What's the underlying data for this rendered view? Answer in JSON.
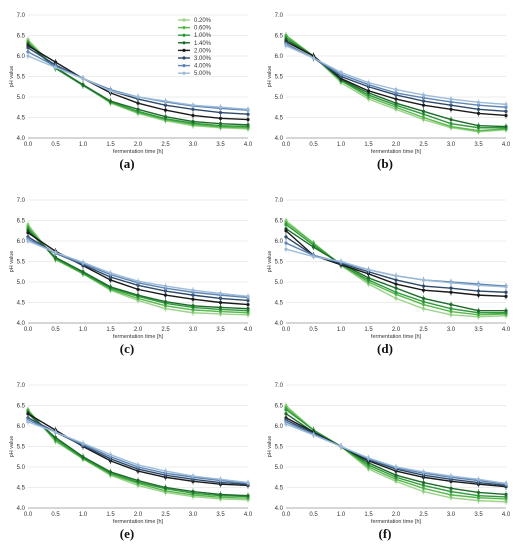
{
  "chart_data": [
    {
      "type": "line",
      "panel_label": "(a)",
      "xlabel": "fermentation time [h]",
      "ylabel": "pH value",
      "ylim": [
        4.0,
        7.0
      ],
      "yticks": [
        "4.0",
        "4.5",
        "5.0",
        "5.5",
        "6.0",
        "6.5",
        "7.0"
      ],
      "xlim": [
        0,
        4
      ],
      "xticks": [
        "0.0",
        "0.5",
        "1.0",
        "1.5",
        "2.0",
        "2.5",
        "3.0",
        "3.5",
        "4.0"
      ],
      "x": [
        0,
        0.5,
        1,
        1.5,
        2,
        2.5,
        3,
        3.5,
        4
      ],
      "legend": {
        "position": "top-right"
      },
      "series": [
        {
          "name": "0.20%",
          "color": "#9bd28c",
          "values": [
            6.4,
            5.7,
            5.3,
            4.85,
            4.6,
            4.42,
            4.3,
            4.25,
            4.22
          ]
        },
        {
          "name": "0.60%",
          "color": "#58b84a",
          "values": [
            6.35,
            5.7,
            5.3,
            4.87,
            4.62,
            4.45,
            4.33,
            4.27,
            4.25
          ]
        },
        {
          "name": "1.00%",
          "color": "#2e9a3c",
          "values": [
            6.3,
            5.7,
            5.28,
            4.88,
            4.65,
            4.47,
            4.36,
            4.3,
            4.28
          ]
        },
        {
          "name": "1.40%",
          "color": "#1e6b2a",
          "values": [
            6.3,
            5.72,
            5.3,
            4.9,
            4.7,
            4.52,
            4.4,
            4.35,
            4.32
          ]
        },
        {
          "name": "2.00%",
          "color": "#1a1a1a",
          "values": [
            6.25,
            5.85,
            5.45,
            5.1,
            4.85,
            4.68,
            4.55,
            4.48,
            4.45
          ]
        },
        {
          "name": "3.00%",
          "color": "#2d4a6b",
          "values": [
            6.2,
            5.78,
            5.45,
            5.15,
            4.95,
            4.8,
            4.7,
            4.62,
            4.58
          ]
        },
        {
          "name": "4.00%",
          "color": "#5e85b5",
          "values": [
            6.1,
            5.75,
            5.45,
            5.18,
            5.0,
            4.88,
            4.78,
            4.72,
            4.68
          ]
        },
        {
          "name": "5.00%",
          "color": "#9cbbd8",
          "values": [
            6.0,
            5.72,
            5.45,
            5.15,
            5.0,
            4.9,
            4.8,
            4.75,
            4.7
          ]
        }
      ]
    },
    {
      "type": "line",
      "panel_label": "(b)",
      "xlabel": "fermentation time [h]",
      "ylabel": "pH value",
      "ylim": [
        4.0,
        7.0
      ],
      "yticks": [
        "4.0",
        "4.5",
        "5.0",
        "5.5",
        "6.0",
        "6.5",
        "7.0"
      ],
      "xlim": [
        0,
        4
      ],
      "xticks": [
        "0.0",
        "0.5",
        "1.0",
        "1.5",
        "2.0",
        "2.5",
        "3.0",
        "3.5",
        "4.0"
      ],
      "x": [
        0,
        0.5,
        1,
        1.5,
        2,
        2.5,
        3,
        3.5,
        4
      ],
      "series": [
        {
          "name": "0.20%",
          "color": "#9bd28c",
          "values": [
            6.5,
            6.0,
            5.35,
            4.95,
            4.7,
            4.45,
            4.25,
            4.15,
            4.2
          ]
        },
        {
          "name": "0.60%",
          "color": "#58b84a",
          "values": [
            6.5,
            6.0,
            5.4,
            5.0,
            4.75,
            4.5,
            4.28,
            4.18,
            4.22
          ]
        },
        {
          "name": "1.00%",
          "color": "#2e9a3c",
          "values": [
            6.45,
            6.0,
            5.4,
            5.05,
            4.8,
            4.58,
            4.35,
            4.25,
            4.25
          ]
        },
        {
          "name": "1.40%",
          "color": "#1e6b2a",
          "values": [
            6.4,
            6.0,
            5.42,
            5.1,
            4.85,
            4.65,
            4.45,
            4.3,
            4.28
          ]
        },
        {
          "name": "2.00%",
          "color": "#1a1a1a",
          "values": [
            6.35,
            6.0,
            5.45,
            5.15,
            4.95,
            4.8,
            4.7,
            4.6,
            4.55
          ]
        },
        {
          "name": "3.00%",
          "color": "#2d4a6b",
          "values": [
            6.3,
            5.95,
            5.5,
            5.25,
            5.05,
            4.9,
            4.8,
            4.7,
            4.65
          ]
        },
        {
          "name": "4.00%",
          "color": "#5e85b5",
          "values": [
            6.3,
            5.95,
            5.55,
            5.3,
            5.1,
            4.98,
            4.88,
            4.8,
            4.75
          ]
        },
        {
          "name": "5.00%",
          "color": "#9cbbd8",
          "values": [
            6.25,
            5.95,
            5.6,
            5.35,
            5.18,
            5.05,
            4.95,
            4.87,
            4.82
          ]
        }
      ]
    },
    {
      "type": "line",
      "panel_label": "(c)",
      "xlabel": "fermentation time [h]",
      "ylabel": "pH value",
      "ylim": [
        4.0,
        7.0
      ],
      "yticks": [
        "4.0",
        "4.5",
        "5.0",
        "5.5",
        "6.0",
        "6.5",
        "7.0"
      ],
      "xlim": [
        0,
        4
      ],
      "xticks": [
        "0.0",
        "0.5",
        "1.0",
        "1.5",
        "2.0",
        "2.5",
        "3.0",
        "3.5",
        "4.0"
      ],
      "x": [
        0,
        0.5,
        1,
        1.5,
        2,
        2.5,
        3,
        3.5,
        4
      ],
      "series": [
        {
          "name": "0.20%",
          "color": "#9bd28c",
          "values": [
            6.4,
            5.55,
            5.2,
            4.8,
            4.55,
            4.35,
            4.25,
            4.22,
            4.2
          ]
        },
        {
          "name": "0.60%",
          "color": "#58b84a",
          "values": [
            6.35,
            5.55,
            5.2,
            4.82,
            4.6,
            4.42,
            4.32,
            4.28,
            4.25
          ]
        },
        {
          "name": "1.00%",
          "color": "#2e9a3c",
          "values": [
            6.3,
            5.58,
            5.22,
            4.85,
            4.65,
            4.48,
            4.38,
            4.33,
            4.3
          ]
        },
        {
          "name": "1.40%",
          "color": "#1e6b2a",
          "values": [
            6.25,
            5.6,
            5.25,
            4.88,
            4.68,
            4.52,
            4.42,
            4.38,
            4.35
          ]
        },
        {
          "name": "2.00%",
          "color": "#1a1a1a",
          "values": [
            6.2,
            5.75,
            5.4,
            5.05,
            4.82,
            4.68,
            4.58,
            4.5,
            4.45
          ]
        },
        {
          "name": "3.00%",
          "color": "#2d4a6b",
          "values": [
            6.1,
            5.7,
            5.42,
            5.12,
            4.92,
            4.78,
            4.68,
            4.6,
            4.55
          ]
        },
        {
          "name": "4.00%",
          "color": "#5e85b5",
          "values": [
            6.05,
            5.7,
            5.45,
            5.18,
            4.98,
            4.85,
            4.75,
            4.68,
            4.62
          ]
        },
        {
          "name": "5.00%",
          "color": "#9cbbd8",
          "values": [
            6.0,
            5.72,
            5.48,
            5.22,
            5.02,
            4.9,
            4.8,
            4.72,
            4.65
          ]
        }
      ]
    },
    {
      "type": "line",
      "panel_label": "(d)",
      "xlabel": "fermentation time [h]",
      "ylabel": "pH value",
      "ylim": [
        4.0,
        7.0
      ],
      "yticks": [
        "4.0",
        "4.5",
        "5.0",
        "5.5",
        "6.0",
        "6.5",
        "7.0"
      ],
      "xlim": [
        0,
        4
      ],
      "xticks": [
        "0.0",
        "0.5",
        "1.0",
        "1.5",
        "2.0",
        "2.5",
        "3.0",
        "3.5",
        "4.0"
      ],
      "x": [
        0,
        0.5,
        1,
        1.5,
        2,
        2.5,
        3,
        3.5,
        4
      ],
      "series": [
        {
          "name": "0.20%",
          "color": "#9bd28c",
          "values": [
            6.5,
            5.95,
            5.4,
            4.95,
            4.6,
            4.35,
            4.2,
            4.15,
            4.18
          ]
        },
        {
          "name": "0.60%",
          "color": "#58b84a",
          "values": [
            6.45,
            5.95,
            5.42,
            5.0,
            4.7,
            4.45,
            4.28,
            4.2,
            4.22
          ]
        },
        {
          "name": "1.00%",
          "color": "#2e9a3c",
          "values": [
            6.4,
            5.9,
            5.42,
            5.05,
            4.75,
            4.52,
            4.35,
            4.25,
            4.25
          ]
        },
        {
          "name": "1.40%",
          "color": "#1e6b2a",
          "values": [
            6.3,
            5.85,
            5.45,
            5.1,
            4.85,
            4.6,
            4.45,
            4.3,
            4.3
          ]
        },
        {
          "name": "2.00%",
          "color": "#1a1a1a",
          "values": [
            6.25,
            5.65,
            5.42,
            5.2,
            4.95,
            4.8,
            4.75,
            4.68,
            4.65
          ]
        },
        {
          "name": "3.00%",
          "color": "#2d4a6b",
          "values": [
            6.1,
            5.65,
            5.45,
            5.25,
            5.05,
            4.9,
            4.85,
            4.78,
            4.75
          ]
        },
        {
          "name": "4.00%",
          "color": "#5e85b5",
          "values": [
            5.95,
            5.65,
            5.48,
            5.3,
            5.15,
            5.05,
            5.0,
            4.95,
            4.9
          ]
        },
        {
          "name": "5.00%",
          "color": "#9cbbd8",
          "values": [
            5.8,
            5.62,
            5.5,
            5.3,
            5.15,
            5.05,
            4.98,
            4.92,
            4.88
          ]
        }
      ]
    },
    {
      "type": "line",
      "panel_label": "(e)",
      "xlabel": "fermentation time [h]",
      "ylabel": "pH value",
      "ylim": [
        4.0,
        7.0
      ],
      "yticks": [
        "4.0",
        "4.5",
        "5.0",
        "5.5",
        "6.0",
        "6.5",
        "7.0"
      ],
      "xlim": [
        0,
        4
      ],
      "xticks": [
        "0.0",
        "0.5",
        "1.0",
        "1.5",
        "2.0",
        "2.5",
        "3.0",
        "3.5",
        "4.0"
      ],
      "x": [
        0,
        0.5,
        1,
        1.5,
        2,
        2.5,
        3,
        3.5,
        4
      ],
      "series": [
        {
          "name": "0.20%",
          "color": "#9bd28c",
          "values": [
            6.4,
            5.62,
            5.2,
            4.8,
            4.55,
            4.38,
            4.28,
            4.22,
            4.2
          ]
        },
        {
          "name": "0.60%",
          "color": "#58b84a",
          "values": [
            6.38,
            5.65,
            5.2,
            4.82,
            4.6,
            4.42,
            4.32,
            4.26,
            4.24
          ]
        },
        {
          "name": "1.00%",
          "color": "#2e9a3c",
          "values": [
            6.35,
            5.68,
            5.22,
            4.85,
            4.63,
            4.47,
            4.36,
            4.3,
            4.28
          ]
        },
        {
          "name": "1.40%",
          "color": "#1e6b2a",
          "values": [
            6.3,
            5.72,
            5.25,
            4.88,
            4.67,
            4.5,
            4.4,
            4.33,
            4.3
          ]
        },
        {
          "name": "2.00%",
          "color": "#1a1a1a",
          "values": [
            6.3,
            5.9,
            5.5,
            5.15,
            4.9,
            4.75,
            4.65,
            4.58,
            4.55
          ]
        },
        {
          "name": "3.00%",
          "color": "#2d4a6b",
          "values": [
            6.2,
            5.85,
            5.52,
            5.2,
            4.95,
            4.8,
            4.7,
            4.62,
            4.58
          ]
        },
        {
          "name": "4.00%",
          "color": "#5e85b5",
          "values": [
            6.15,
            5.85,
            5.55,
            5.25,
            5.0,
            4.85,
            4.75,
            4.67,
            4.6
          ]
        },
        {
          "name": "5.00%",
          "color": "#9cbbd8",
          "values": [
            6.1,
            5.85,
            5.58,
            5.3,
            5.05,
            4.9,
            4.78,
            4.7,
            4.62
          ]
        }
      ]
    },
    {
      "type": "line",
      "panel_label": "(f)",
      "xlabel": "fermentation time [h]",
      "ylabel": "pH value",
      "ylim": [
        4.0,
        7.0
      ],
      "yticks": [
        "4.0",
        "4.5",
        "5.0",
        "5.5",
        "6.0",
        "6.5",
        "7.0"
      ],
      "xlim": [
        0,
        4
      ],
      "xticks": [
        "0.0",
        "0.5",
        "1.0",
        "1.5",
        "2.0",
        "2.5",
        "3.0",
        "3.5",
        "4.0"
      ],
      "x": [
        0,
        0.5,
        1,
        1.5,
        2,
        2.5,
        3,
        3.5,
        4
      ],
      "series": [
        {
          "name": "0.20%",
          "color": "#9bd28c",
          "values": [
            6.5,
            5.9,
            5.5,
            4.95,
            4.65,
            4.4,
            4.25,
            4.18,
            4.15
          ]
        },
        {
          "name": "0.60%",
          "color": "#58b84a",
          "values": [
            6.45,
            5.9,
            5.5,
            5.0,
            4.7,
            4.48,
            4.32,
            4.25,
            4.22
          ]
        },
        {
          "name": "1.00%",
          "color": "#2e9a3c",
          "values": [
            6.4,
            5.9,
            5.5,
            5.05,
            4.75,
            4.55,
            4.4,
            4.3,
            4.27
          ]
        },
        {
          "name": "1.40%",
          "color": "#1e6b2a",
          "values": [
            6.3,
            5.85,
            5.5,
            5.1,
            4.8,
            4.62,
            4.48,
            4.38,
            4.33
          ]
        },
        {
          "name": "2.00%",
          "color": "#1a1a1a",
          "values": [
            6.2,
            5.85,
            5.5,
            5.15,
            4.9,
            4.75,
            4.65,
            4.58,
            4.52
          ]
        },
        {
          "name": "3.00%",
          "color": "#2d4a6b",
          "values": [
            6.15,
            5.82,
            5.5,
            5.18,
            4.95,
            4.8,
            4.7,
            4.62,
            4.55
          ]
        },
        {
          "name": "4.00%",
          "color": "#5e85b5",
          "values": [
            6.1,
            5.8,
            5.5,
            5.2,
            4.98,
            4.85,
            4.75,
            4.67,
            4.58
          ]
        },
        {
          "name": "5.00%",
          "color": "#9cbbd8",
          "values": [
            6.05,
            5.78,
            5.5,
            5.22,
            5.0,
            4.88,
            4.78,
            4.7,
            4.6
          ]
        }
      ]
    }
  ]
}
